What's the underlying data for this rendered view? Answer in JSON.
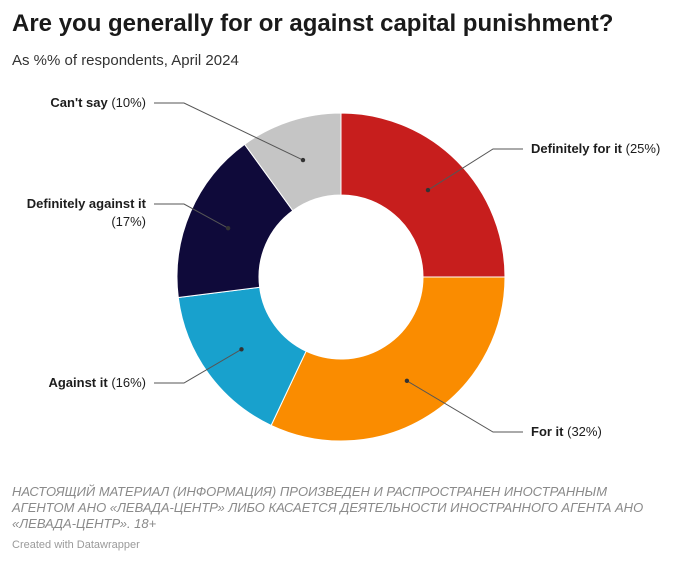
{
  "title": "Are you generally for or against capital punishment?",
  "subtitle": "As %% of respondents, April 2024",
  "chart_data": {
    "type": "pie",
    "variant": "donut",
    "unit": "%",
    "slices": [
      {
        "name": "Definitely for it",
        "value": 25,
        "label_value": "(25%)",
        "color": "#c71e1d"
      },
      {
        "name": "For it",
        "value": 32,
        "label_value": "(32%)",
        "color": "#fa8c00"
      },
      {
        "name": "Against it",
        "value": 16,
        "label_value": "(16%)",
        "color": "#18a1cd"
      },
      {
        "name": "Definitely against it",
        "value": 17,
        "label_value": "(17%)",
        "color": "#0f0a3a"
      },
      {
        "name": "Can't say",
        "value": 10,
        "label_value": "(10%)",
        "color": "#c5c5c5"
      }
    ]
  },
  "notes": "НАСТОЯЩИЙ МАТЕРИАЛ (ИНФОРМАЦИЯ) ПРОИЗВЕДЕН И РАСПРОСТРАНЕН ИНОСТРАННЫМ АГЕНТОМ АНО «ЛЕВАДА-ЦЕНТР» ЛИБО КАСАЕТСЯ ДЕЯТЕЛЬНОСТИ ИНОСТРАННОГО АГЕНТА АНО «ЛЕВАДА-ЦЕНТР». 18+",
  "byline": "Created with Datawrapper"
}
